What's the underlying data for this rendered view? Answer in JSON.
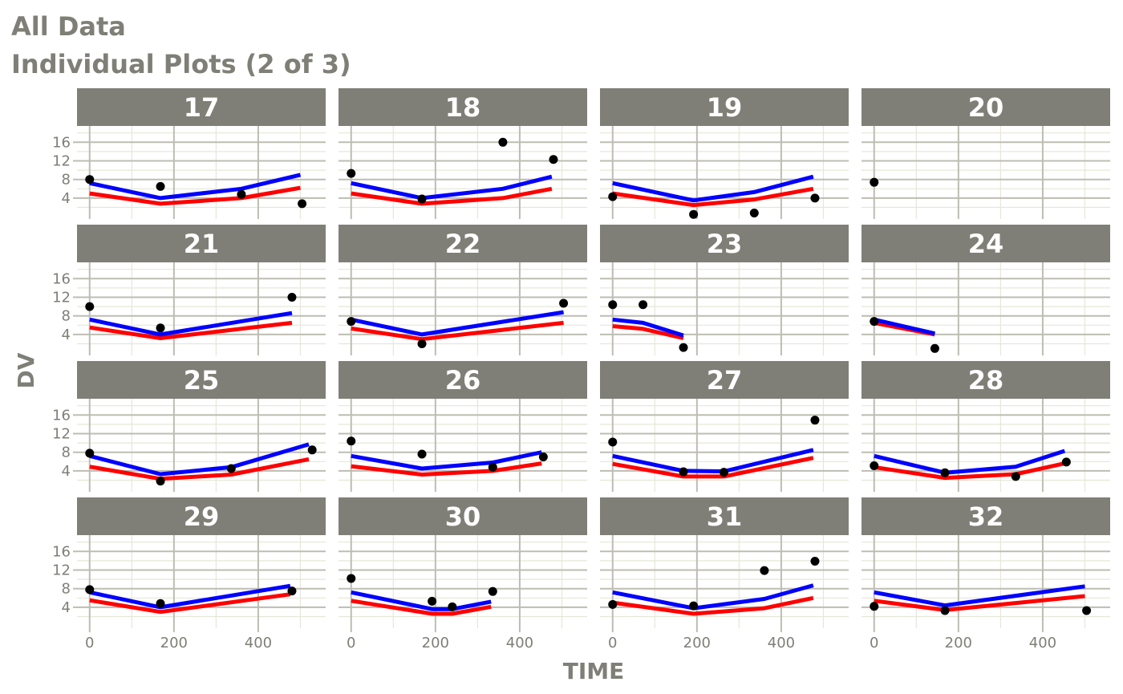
{
  "title": "All Data",
  "subtitle": "Individual Plots (2 of 3)",
  "colors": {
    "strip_bg": "#7f7f77",
    "strip_text": "#ffffff",
    "grid_major": "#bdbdb3",
    "grid_minor": "#e6e7d8",
    "text": "#7f7f77",
    "observed": "#000000",
    "line_blue": "#0000ff",
    "line_red": "#ff0000"
  },
  "chart_data": {
    "type": "line",
    "facet_layout": "4x4",
    "xlabel": "TIME",
    "ylabel": "DV",
    "xlim": [
      -30,
      560
    ],
    "ylim": [
      -0.5,
      19.5
    ],
    "x_ticks": [
      0,
      200,
      400
    ],
    "y_ticks": [
      4,
      8,
      12,
      16
    ],
    "panels": [
      {
        "id": "17",
        "obs": [
          [
            0,
            8
          ],
          [
            168,
            6.5
          ],
          [
            360,
            4.8
          ],
          [
            504,
            2.8
          ]
        ],
        "blue": [
          [
            0,
            7.2
          ],
          [
            168,
            4
          ],
          [
            360,
            6
          ],
          [
            500,
            9
          ]
        ],
        "red": [
          [
            0,
            5
          ],
          [
            168,
            2.8
          ],
          [
            360,
            4
          ],
          [
            500,
            6.2
          ]
        ]
      },
      {
        "id": "18",
        "obs": [
          [
            0,
            9.3
          ],
          [
            168,
            3.8
          ],
          [
            360,
            16
          ],
          [
            480,
            12.3
          ]
        ],
        "blue": [
          [
            0,
            7.2
          ],
          [
            168,
            4
          ],
          [
            360,
            6
          ],
          [
            476,
            8.6
          ]
        ],
        "red": [
          [
            0,
            5
          ],
          [
            168,
            2.8
          ],
          [
            360,
            4
          ],
          [
            476,
            6
          ]
        ]
      },
      {
        "id": "19",
        "obs": [
          [
            0,
            4.3
          ],
          [
            192,
            0.5
          ],
          [
            336,
            0.8
          ],
          [
            480,
            4
          ]
        ],
        "blue": [
          [
            0,
            7.2
          ],
          [
            192,
            3.5
          ],
          [
            336,
            5.3
          ],
          [
            476,
            8.6
          ]
        ],
        "red": [
          [
            0,
            5
          ],
          [
            192,
            2.5
          ],
          [
            336,
            3.7
          ],
          [
            476,
            6
          ]
        ]
      },
      {
        "id": "20",
        "obs": [
          [
            0,
            7.4
          ]
        ],
        "blue": [],
        "red": []
      },
      {
        "id": "21",
        "obs": [
          [
            0,
            10
          ],
          [
            168,
            5.4
          ],
          [
            480,
            12
          ]
        ],
        "blue": [
          [
            0,
            7.2
          ],
          [
            168,
            4
          ],
          [
            480,
            8.6
          ]
        ],
        "red": [
          [
            0,
            5.5
          ],
          [
            168,
            3.2
          ],
          [
            480,
            6.5
          ]
        ]
      },
      {
        "id": "22",
        "obs": [
          [
            0,
            6.8
          ],
          [
            168,
            2
          ],
          [
            504,
            10.7
          ]
        ],
        "blue": [
          [
            0,
            7.2
          ],
          [
            168,
            4
          ],
          [
            504,
            8.8
          ]
        ],
        "red": [
          [
            0,
            5.3
          ],
          [
            168,
            3
          ],
          [
            504,
            6.5
          ]
        ]
      },
      {
        "id": "23",
        "obs": [
          [
            0,
            10.4
          ],
          [
            72,
            10.4
          ],
          [
            168,
            1.2
          ]
        ],
        "blue": [
          [
            0,
            7.2
          ],
          [
            72,
            6.5
          ],
          [
            168,
            3.8
          ]
        ],
        "red": [
          [
            0,
            5.8
          ],
          [
            72,
            5.2
          ],
          [
            168,
            3.2
          ]
        ]
      },
      {
        "id": "24",
        "obs": [
          [
            0,
            6.8
          ],
          [
            144,
            1
          ]
        ],
        "blue": [
          [
            0,
            7.2
          ],
          [
            144,
            4.2
          ]
        ],
        "red": [
          [
            0,
            6.5
          ],
          [
            144,
            4
          ]
        ]
      },
      {
        "id": "25",
        "obs": [
          [
            0,
            7.8
          ],
          [
            168,
            1.8
          ],
          [
            336,
            4.5
          ],
          [
            528,
            8.5
          ]
        ],
        "blue": [
          [
            0,
            7.2
          ],
          [
            168,
            3.3
          ],
          [
            336,
            4.8
          ],
          [
            520,
            9.7
          ]
        ],
        "red": [
          [
            0,
            4.9
          ],
          [
            168,
            2.3
          ],
          [
            336,
            3.2
          ],
          [
            520,
            6.5
          ]
        ]
      },
      {
        "id": "26",
        "obs": [
          [
            0,
            10.4
          ],
          [
            168,
            7.6
          ],
          [
            336,
            4.8
          ],
          [
            456,
            7
          ]
        ],
        "blue": [
          [
            0,
            7.2
          ],
          [
            168,
            4.5
          ],
          [
            336,
            5.8
          ],
          [
            452,
            8
          ]
        ],
        "red": [
          [
            0,
            5
          ],
          [
            168,
            3.2
          ],
          [
            336,
            4
          ],
          [
            452,
            5.6
          ]
        ]
      },
      {
        "id": "27",
        "obs": [
          [
            0,
            10.2
          ],
          [
            168,
            3.8
          ],
          [
            264,
            3.7
          ],
          [
            480,
            14.9
          ]
        ],
        "blue": [
          [
            0,
            7.2
          ],
          [
            168,
            4
          ],
          [
            264,
            3.9
          ],
          [
            476,
            8.5
          ]
        ],
        "red": [
          [
            0,
            5.5
          ],
          [
            168,
            2.8
          ],
          [
            264,
            2.8
          ],
          [
            476,
            6.8
          ]
        ]
      },
      {
        "id": "28",
        "obs": [
          [
            0,
            5.1
          ],
          [
            168,
            3.6
          ],
          [
            336,
            2.8
          ],
          [
            456,
            5.9
          ]
        ],
        "blue": [
          [
            0,
            7.2
          ],
          [
            168,
            3.6
          ],
          [
            336,
            4.9
          ],
          [
            452,
            8.3
          ]
        ],
        "red": [
          [
            0,
            4.8
          ],
          [
            168,
            2.5
          ],
          [
            336,
            3.3
          ],
          [
            452,
            5.6
          ]
        ]
      },
      {
        "id": "29",
        "obs": [
          [
            0,
            7.8
          ],
          [
            168,
            4.8
          ],
          [
            480,
            7.5
          ]
        ],
        "blue": [
          [
            0,
            7.2
          ],
          [
            168,
            4
          ],
          [
            476,
            8.6
          ]
        ],
        "red": [
          [
            0,
            5.5
          ],
          [
            168,
            3
          ],
          [
            476,
            6.8
          ]
        ]
      },
      {
        "id": "30",
        "obs": [
          [
            0,
            10.2
          ],
          [
            192,
            5.3
          ],
          [
            240,
            4.1
          ],
          [
            336,
            7.4
          ]
        ],
        "blue": [
          [
            0,
            7.2
          ],
          [
            192,
            3.6
          ],
          [
            240,
            3.6
          ],
          [
            332,
            5.2
          ]
        ],
        "red": [
          [
            0,
            5.4
          ],
          [
            192,
            2.6
          ],
          [
            240,
            2.6
          ],
          [
            332,
            4.1
          ]
        ]
      },
      {
        "id": "31",
        "obs": [
          [
            0,
            4.6
          ],
          [
            192,
            4.3
          ],
          [
            360,
            11.9
          ],
          [
            480,
            13.9
          ]
        ],
        "blue": [
          [
            0,
            7.2
          ],
          [
            192,
            3.8
          ],
          [
            360,
            5.8
          ],
          [
            476,
            8.7
          ]
        ],
        "red": [
          [
            0,
            5
          ],
          [
            192,
            2.6
          ],
          [
            360,
            3.8
          ],
          [
            476,
            6
          ]
        ]
      },
      {
        "id": "32",
        "obs": [
          [
            0,
            4.2
          ],
          [
            168,
            3.3
          ],
          [
            504,
            3.3
          ]
        ],
        "blue": [
          [
            0,
            7.2
          ],
          [
            168,
            4.4
          ],
          [
            500,
            8.5
          ]
        ],
        "red": [
          [
            0,
            5.4
          ],
          [
            168,
            3.4
          ],
          [
            500,
            6.4
          ]
        ]
      }
    ]
  }
}
